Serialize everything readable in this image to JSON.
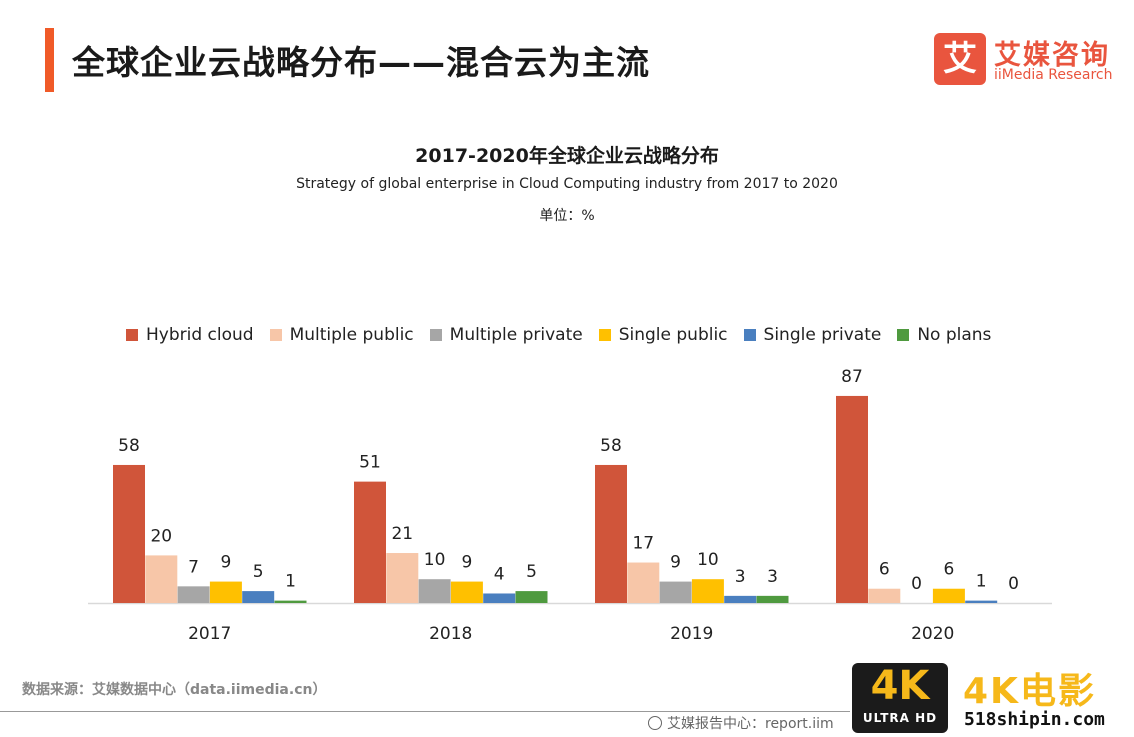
{
  "header": {
    "title": "全球企业云战略分布——混合云为主流"
  },
  "logo": {
    "mark": "艾",
    "name_cn": "艾媒咨询",
    "name_en": "iiMedia Research"
  },
  "legend": {
    "items": [
      {
        "label": "Hybrid cloud",
        "color": "#d0553a"
      },
      {
        "label": "Multiple public",
        "color": "#f7c6a8"
      },
      {
        "label": "Multiple private",
        "color": "#a6a6a6"
      },
      {
        "label": "Single public",
        "color": "#ffc000"
      },
      {
        "label": "Single private",
        "color": "#4a7fbf"
      },
      {
        "label": "No plans",
        "color": "#4f9a3f"
      }
    ]
  },
  "chart_data": {
    "type": "bar",
    "title": "2017-2020年全球企业云战略分布",
    "subtitle": "Strategy of global enterprise in Cloud Computing industry from 2017 to 2020",
    "unit": "单位：%",
    "categories": [
      "2017",
      "2018",
      "2019",
      "2020"
    ],
    "series": [
      {
        "name": "Hybrid cloud",
        "color": "#d0553a",
        "values": [
          58,
          51,
          58,
          87
        ]
      },
      {
        "name": "Multiple public",
        "color": "#f7c6a8",
        "values": [
          20,
          21,
          17,
          6
        ]
      },
      {
        "name": "Multiple private",
        "color": "#a6a6a6",
        "values": [
          7,
          10,
          9,
          0
        ]
      },
      {
        "name": "Single public",
        "color": "#ffc000",
        "values": [
          9,
          9,
          10,
          6
        ]
      },
      {
        "name": "Single private",
        "color": "#4a7fbf",
        "values": [
          5,
          4,
          3,
          1
        ]
      },
      {
        "name": "No plans",
        "color": "#4f9a3f",
        "values": [
          1,
          5,
          3,
          0
        ]
      }
    ],
    "ylim": [
      0,
      100
    ],
    "grid": false,
    "legend_position": "top"
  },
  "footer": {
    "source": "数据来源：艾媒数据中心（data.iimedia.cn）",
    "report": "艾媒报告中心：report.iim"
  },
  "watermark": {
    "badge": "4K",
    "badge_sub": "ULTRA HD",
    "brand": "4K电影",
    "site": "518shipin.com"
  }
}
